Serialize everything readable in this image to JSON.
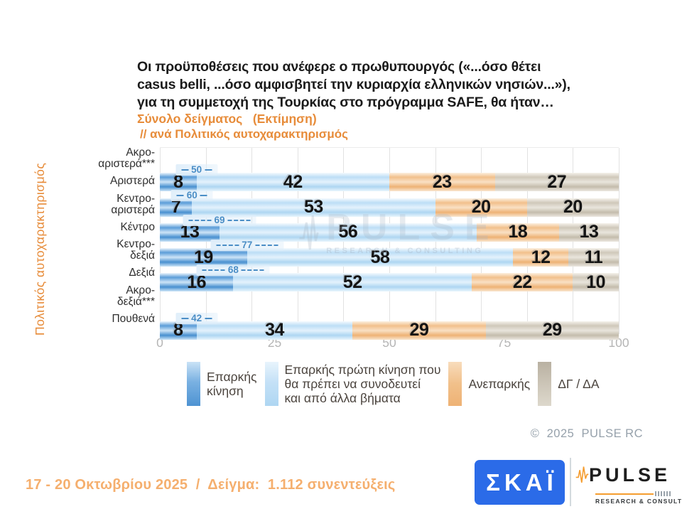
{
  "title": {
    "line1": "Οι προϋποθέσεις που ανέφερε ο πρωθυπουργός («...όσο θέτει",
    "line2": "casus belli,  ...όσο αμφισβητεί την κυριαρχία ελληνικών νησιών...»),",
    "line3": "για τη συμμετοχή της Τουρκίας στο πρόγραμμα SAFE, θα ήταν…"
  },
  "subtitle": {
    "line1": "Σύνολο δείγματος   (Εκτίμηση)",
    "line2": "// ανά Πολιτικός αυτοχαρακτηρισμός"
  },
  "chart_data": {
    "type": "bar",
    "orientation": "horizontal-stacked",
    "title": "Οι προϋποθέσεις που ανέφερε ο πρωθυπουργός, για τη συμμετοχή της Τουρκίας στο πρόγραμμα SAFE, θα ήταν…",
    "xlabel": "",
    "ylabel": "Πολιτικός αυτοχαρακτηρισμός",
    "xlim": [
      0,
      100
    ],
    "x_ticks": [
      0,
      25,
      50,
      75,
      100
    ],
    "grid": true,
    "legend_position": "bottom",
    "categories": [
      "Ακρο-\nαριστερά***",
      "Αριστερά",
      "Κεντρο-\nαριστερά",
      "Κέντρο",
      "Κεντρο-\nδεξιά",
      "Δεξιά",
      "Ακρο-\nδεξιά***",
      "Πουθενά"
    ],
    "series": [
      {
        "name": "Επαρκής κίνηση",
        "color": "#4890d0",
        "values": [
          null,
          8,
          7,
          13,
          19,
          16,
          null,
          8
        ]
      },
      {
        "name": "Επαρκής πρώτη κίνηση που θα πρέπει να συνοδευτεί και από άλλα βήματα",
        "color": "#aed6f2",
        "values": [
          null,
          42,
          53,
          56,
          58,
          52,
          null,
          34
        ]
      },
      {
        "name": "Ανεπαρκής",
        "color": "#eeb275",
        "values": [
          null,
          23,
          20,
          18,
          12,
          22,
          null,
          29
        ]
      },
      {
        "name": "ΔΓ / ΔΑ",
        "color": "#c9c1b3",
        "values": [
          null,
          27,
          20,
          13,
          11,
          10,
          null,
          29
        ]
      }
    ],
    "total_markers": [
      null,
      50,
      60,
      69,
      77,
      68,
      null,
      42
    ],
    "total_marker_style": [
      null,
      "short",
      "short",
      "long",
      "long",
      "long",
      null,
      "short"
    ],
    "marker_color": "#4B8EC6"
  },
  "watermark": {
    "word": "PULSE",
    "sub": "RESEARCH & CONSULTING"
  },
  "legend": {
    "items": [
      {
        "label": "Επαρκής\nκίνηση"
      },
      {
        "label": "Επαρκής πρώτη κίνηση που\nθα πρέπει να συνοδευτεί\nκαι από άλλα βήματα"
      },
      {
        "label": "Ανεπαρκής"
      },
      {
        "label": "ΔΓ / ΔΑ"
      }
    ]
  },
  "copyright": "©  2025  PULSE RC",
  "footer": {
    "survey_info": "17 - 20 Οκτωβρίου 2025  /  Δείγμα:  1.112 συνεντεύξεις",
    "skai_label": "ΣΚΑΪ",
    "pulse_word": "PULSE",
    "pulse_sub": "RESEARCH & CONSULTING"
  },
  "colors": {
    "accent_orange": "#E78C3A",
    "footer_orange": "#F5AF6E",
    "marker_blue": "#4B8EC6",
    "skai_blue": "#2B6BE8",
    "pulse_orange": "#f59d2f"
  }
}
